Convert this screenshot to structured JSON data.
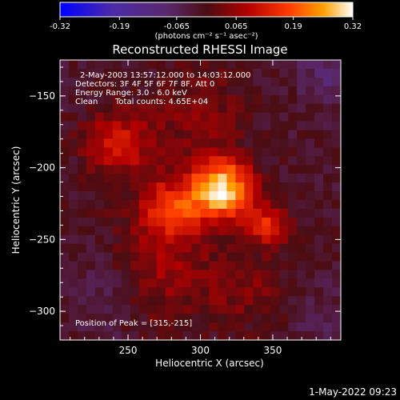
{
  "chart_data": {
    "type": "heatmap",
    "title": "Reconstructed RHESSI Image",
    "xlabel": "Heliocentric X (arcsec)",
    "ylabel": "Heliocentric Y (arcsec)",
    "xlim": [
      203,
      397
    ],
    "ylim": [
      -320,
      -125
    ],
    "x_ticks": [
      250,
      300,
      350
    ],
    "y_ticks": [
      -150,
      -200,
      -250,
      -300
    ],
    "colorbar": {
      "ticks": [
        "-0.32",
        "-0.19",
        "-0.065",
        "0.065",
        "0.19",
        "0.32"
      ],
      "min": -0.32,
      "max": 0.32,
      "unit_label": "(photons cm⁻² s⁻¹ asec⁻²)"
    },
    "grid_size": [
      32,
      32
    ],
    "peak": {
      "x": 315,
      "y": -215,
      "value": 0.32
    },
    "blobs": [
      {
        "x": 315,
        "y": -215,
        "amp": 0.33,
        "sigma": 15
      },
      {
        "x": 280,
        "y": -228,
        "amp": 0.17,
        "sigma": 15
      },
      {
        "x": 347,
        "y": -240,
        "amp": 0.15,
        "sigma": 10
      },
      {
        "x": 250,
        "y": -185,
        "amp": 0.1,
        "sigma": 18
      },
      {
        "x": 270,
        "y": -270,
        "amp": 0.09,
        "sigma": 25
      },
      {
        "x": 330,
        "y": -285,
        "amp": 0.06,
        "sigma": 20
      },
      {
        "x": 235,
        "y": -180,
        "amp": 0.07,
        "sigma": 12
      },
      {
        "x": 300,
        "y": -160,
        "amp": 0.07,
        "sigma": 20
      },
      {
        "x": 235,
        "y": -285,
        "amp": -0.05,
        "sigma": 20
      },
      {
        "x": 390,
        "y": -135,
        "amp": -0.07,
        "sigma": 15
      },
      {
        "x": 385,
        "y": -305,
        "amp": -0.04,
        "sigma": 15
      }
    ]
  },
  "annotations": {
    "time_range": "2-May-2003 13:57:12.000 to 14:03:12.000",
    "detectors": "Detectors: 3F 4F 5F 6F 7F 8F, Att 0",
    "energy_range": "Energy Range: 3.0 - 6.0 keV",
    "method": "Clean",
    "total_counts": "Total counts: 4.65E+04",
    "peak_position": "Position of Peak = [315,-215]"
  },
  "timestamp": "1-May-2022 09:23"
}
